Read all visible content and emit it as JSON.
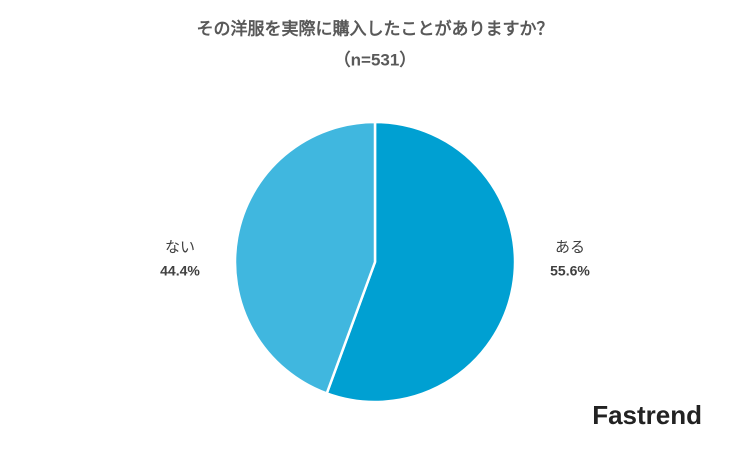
{
  "chart_data": {
    "type": "pie",
    "title": "その洋服を実際に購入したことがありますか？",
    "subtitle": "（n=531）",
    "categories": [
      "ある",
      "ない"
    ],
    "values": [
      55.6,
      44.4
    ],
    "value_labels": [
      "55.6%",
      "44.4%"
    ],
    "colors": [
      "#00a0d2",
      "#40b7df"
    ],
    "watermark": "Fastrend"
  }
}
